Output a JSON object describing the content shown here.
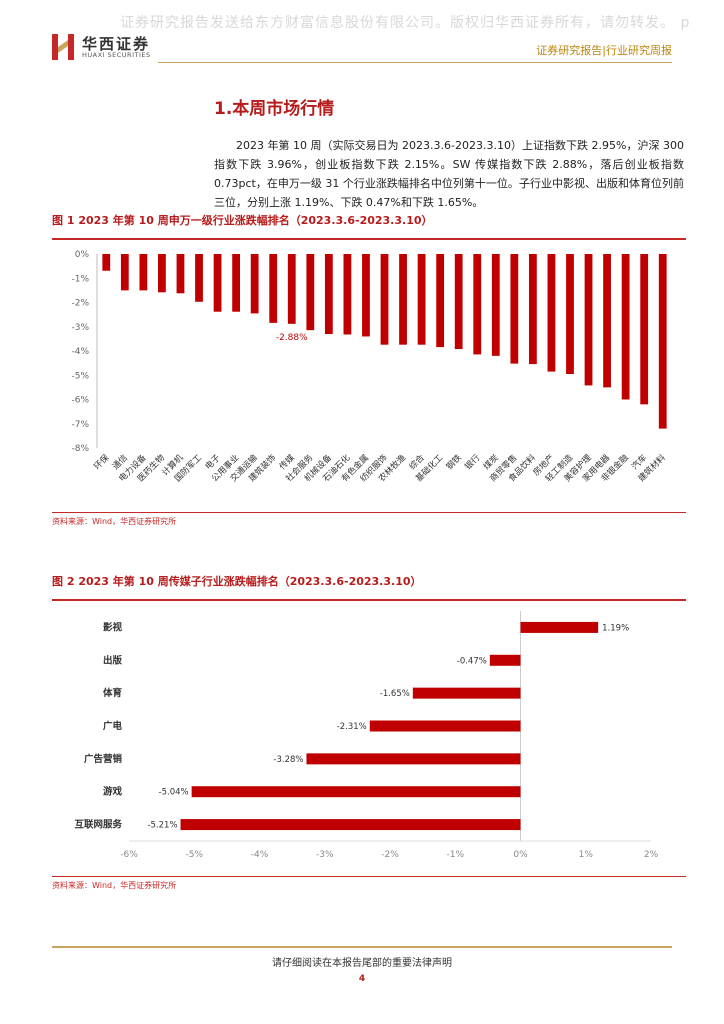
{
  "watermark": "证券研究报告发送给东方财富信息股份有限公司。版权归华西证券所有，请勿转发。 p",
  "header": {
    "logo_cn": "华西证券",
    "logo_en": "HUAXI SECURITIES",
    "right_text": "证券研究报告|行业研究周报"
  },
  "section": {
    "title": "1.本周市场行情",
    "paragraph": "2023 年第 10 周（实际交易日为 2023.3.6-2023.3.10）上证指数下跌 2.95%，沪深 300 指数下跌 3.96%，创业板指数下跌 2.15%。SW 传媒指数下跌 2.88%，落后创业板指数 0.73pct，在申万一级 31 个行业涨跌幅排名中位列第十一位。子行业中影视、出版和体育位列前三位，分别上涨 1.19%、下跌 0.47%和下跌 1.65%。"
  },
  "figure1": {
    "title": "图 1 2023 年第 10 周申万一级行业涨跌幅排名（2023.3.6-2023.3.10）",
    "source": "资料来源：Wind，华西证券研究所"
  },
  "figure2": {
    "title": "图 2 2023 年第 10 周传媒子行业涨跌幅排名（2023.3.6-2023.3.10）",
    "source": "资料来源：Wind，华西证券研究所"
  },
  "footer": {
    "text": "请仔细阅读在本报告尾部的重要法律声明",
    "page": "4"
  },
  "colors": {
    "bar": "#c00000",
    "accent": "#b71c1c",
    "gold": "#c9a45c"
  },
  "chart_data": [
    {
      "type": "bar",
      "title": "",
      "categories": [
        "环保",
        "通信",
        "电力设备",
        "医药生物",
        "计算机",
        "国防军工",
        "电子",
        "公用事业",
        "交通运输",
        "建筑装饰",
        "传媒",
        "社会服务",
        "机械设备",
        "石油石化",
        "有色金属",
        "纺织服饰",
        "农林牧渔",
        "综合",
        "基础化工",
        "钢铁",
        "银行",
        "煤炭",
        "商贸零售",
        "食品饮料",
        "房地产",
        "轻工制造",
        "美容护理",
        "家用电器",
        "非银金融",
        "汽车",
        "建筑材料"
      ],
      "values": [
        -0.69,
        -1.5,
        -1.5,
        -1.58,
        -1.62,
        -1.97,
        -2.38,
        -2.38,
        -2.45,
        -2.84,
        -2.88,
        -3.14,
        -3.3,
        -3.32,
        -3.4,
        -3.74,
        -3.74,
        -3.74,
        -3.84,
        -3.92,
        -4.14,
        -4.2,
        -4.52,
        -4.54,
        -4.85,
        -4.95,
        -5.42,
        -5.5,
        -6.0,
        -6.2,
        -7.2
      ],
      "highlight_label": "-2.88%",
      "highlight_index": 10,
      "yticks": [
        "0%",
        "-1%",
        "-2%",
        "-3%",
        "-4%",
        "-5%",
        "-6%",
        "-7%",
        "-8%"
      ],
      "ylim": [
        -8,
        0
      ],
      "grid": false
    },
    {
      "type": "bar",
      "orientation": "horizontal",
      "title": "",
      "categories": [
        "影视",
        "出版",
        "体育",
        "广电",
        "广告营销",
        "游戏",
        "互联网服务"
      ],
      "values": [
        1.19,
        -0.47,
        -1.65,
        -2.31,
        -3.28,
        -5.04,
        -5.21
      ],
      "labels": [
        "1.19%",
        "-0.47%",
        "-1.65%",
        "-2.31%",
        "-3.28%",
        "-5.04%",
        "-5.21%"
      ],
      "xticks": [
        "-6%",
        "-5%",
        "-4%",
        "-3%",
        "-2%",
        "-1%",
        "0%",
        "1%",
        "2%"
      ],
      "xlim": [
        -6,
        2
      ],
      "grid": false
    }
  ]
}
